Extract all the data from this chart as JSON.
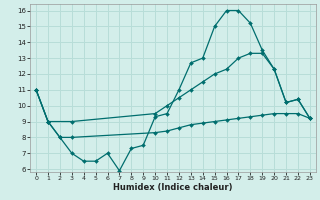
{
  "xlabel": "Humidex (Indice chaleur)",
  "xlim": [
    -0.5,
    23.5
  ],
  "ylim": [
    5.8,
    16.4
  ],
  "yticks": [
    6,
    7,
    8,
    9,
    10,
    11,
    12,
    13,
    14,
    15,
    16
  ],
  "xticks": [
    0,
    1,
    2,
    3,
    4,
    5,
    6,
    7,
    8,
    9,
    10,
    11,
    12,
    13,
    14,
    15,
    16,
    17,
    18,
    19,
    20,
    21,
    22,
    23
  ],
  "bg_color": "#d3eeea",
  "grid_color": "#b8ddd8",
  "line_color": "#006e6e",
  "line1_x": [
    0,
    1,
    2,
    3,
    4,
    5,
    6,
    7,
    8,
    9,
    10,
    11,
    12,
    13,
    14,
    15,
    16,
    17,
    18,
    19,
    20,
    21,
    22,
    23
  ],
  "line1_y": [
    11,
    9,
    8,
    7,
    6.5,
    6.5,
    7,
    5.9,
    7.3,
    7.5,
    9.3,
    9.5,
    11.0,
    12.7,
    13.0,
    15.0,
    16.0,
    16.0,
    15.2,
    13.5,
    12.3,
    10.2,
    10.4,
    9.2
  ],
  "line2_x": [
    0,
    1,
    3,
    10,
    11,
    12,
    13,
    14,
    15,
    16,
    17,
    18,
    19,
    20,
    21,
    22,
    23
  ],
  "line2_y": [
    11,
    9,
    9,
    9.5,
    10.0,
    10.5,
    11.0,
    11.5,
    12.0,
    12.3,
    13.0,
    13.3,
    13.3,
    12.3,
    10.2,
    10.4,
    9.2
  ],
  "line3_x": [
    0,
    1,
    2,
    3,
    10,
    11,
    12,
    13,
    14,
    15,
    16,
    17,
    18,
    19,
    20,
    21,
    22,
    23
  ],
  "line3_y": [
    11,
    9,
    8,
    8,
    8.3,
    8.4,
    8.6,
    8.8,
    8.9,
    9.0,
    9.1,
    9.2,
    9.3,
    9.4,
    9.5,
    9.5,
    9.5,
    9.2
  ]
}
